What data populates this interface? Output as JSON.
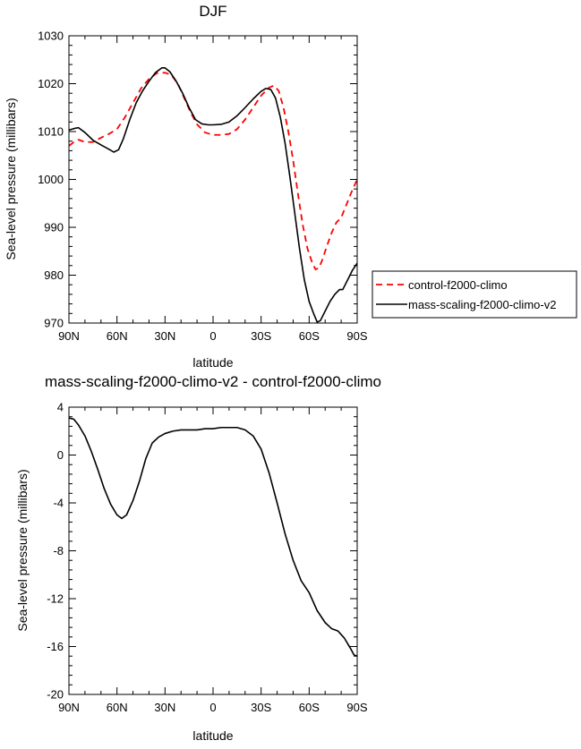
{
  "chart_data": [
    {
      "type": "line",
      "title": "DJF",
      "xlabel": "latitude",
      "ylabel": "Sea-level pressure (millibars)",
      "xlim": [
        90,
        -90
      ],
      "ylim": [
        970,
        1030
      ],
      "x_ticks": [
        90,
        60,
        30,
        0,
        -30,
        -60,
        -90
      ],
      "x_tick_labels": [
        "90N",
        "60N",
        "30N",
        "0",
        "30S",
        "60S",
        "90S"
      ],
      "y_ticks": [
        970,
        980,
        990,
        1000,
        1010,
        1020,
        1030
      ],
      "y_tick_labels": [
        "970",
        "980",
        "990",
        "1000",
        "1010",
        "1020",
        "1030"
      ],
      "legend_position": "right",
      "series": [
        {
          "name": "control-f2000-climo",
          "color": "#ff0000",
          "dash": "dashed",
          "points": [
            [
              90,
              1007.0
            ],
            [
              87,
              1007.8
            ],
            [
              84,
              1008.3
            ],
            [
              80,
              1007.8
            ],
            [
              75,
              1007.8
            ],
            [
              70,
              1008.7
            ],
            [
              65,
              1009.5
            ],
            [
              60,
              1010.5
            ],
            [
              55,
              1013.0
            ],
            [
              50,
              1016.0
            ],
            [
              45,
              1019.0
            ],
            [
              40,
              1021.0
            ],
            [
              35,
              1022.2
            ],
            [
              30,
              1022.3
            ],
            [
              26,
              1021.8
            ],
            [
              22,
              1020.0
            ],
            [
              18,
              1017.0
            ],
            [
              14,
              1014.0
            ],
            [
              10,
              1011.5
            ],
            [
              5,
              1009.8
            ],
            [
              0,
              1009.3
            ],
            [
              -5,
              1009.3
            ],
            [
              -10,
              1009.5
            ],
            [
              -15,
              1010.5
            ],
            [
              -20,
              1012.5
            ],
            [
              -25,
              1015.0
            ],
            [
              -30,
              1017.5
            ],
            [
              -35,
              1019.2
            ],
            [
              -38,
              1019.6
            ],
            [
              -41,
              1018.5
            ],
            [
              -44,
              1015.0
            ],
            [
              -47,
              1010.0
            ],
            [
              -50,
              1004.0
            ],
            [
              -53,
              997.0
            ],
            [
              -56,
              990.5
            ],
            [
              -59,
              985.5
            ],
            [
              -62,
              982.5
            ],
            [
              -64,
              981.2
            ],
            [
              -66,
              981.5
            ],
            [
              -68,
              983.0
            ],
            [
              -71,
              986.0
            ],
            [
              -74,
              988.8
            ],
            [
              -77,
              991.0
            ],
            [
              -80,
              992.0
            ],
            [
              -83,
              994.5
            ],
            [
              -86,
              997.0
            ],
            [
              -90,
              1000.0
            ]
          ]
        },
        {
          "name": "mass-scaling-f2000-climo-v2",
          "color": "#000000",
          "dash": "solid",
          "points": [
            [
              90,
              1010.3
            ],
            [
              86,
              1010.7
            ],
            [
              84,
              1010.8
            ],
            [
              80,
              1009.8
            ],
            [
              75,
              1008.2
            ],
            [
              70,
              1007.2
            ],
            [
              65,
              1006.3
            ],
            [
              62,
              1005.7
            ],
            [
              59,
              1006.2
            ],
            [
              56,
              1008.5
            ],
            [
              52,
              1012.5
            ],
            [
              48,
              1016.0
            ],
            [
              44,
              1018.5
            ],
            [
              40,
              1020.5
            ],
            [
              36,
              1022.3
            ],
            [
              32,
              1023.3
            ],
            [
              30,
              1023.3
            ],
            [
              27,
              1022.5
            ],
            [
              23,
              1020.5
            ],
            [
              19,
              1018.0
            ],
            [
              15,
              1015.0
            ],
            [
              11,
              1012.5
            ],
            [
              7,
              1011.6
            ],
            [
              3,
              1011.4
            ],
            [
              0,
              1011.4
            ],
            [
              -5,
              1011.5
            ],
            [
              -10,
              1012.0
            ],
            [
              -15,
              1013.3
            ],
            [
              -20,
              1015.0
            ],
            [
              -25,
              1016.8
            ],
            [
              -30,
              1018.4
            ],
            [
              -33,
              1019.0
            ],
            [
              -36,
              1018.8
            ],
            [
              -39,
              1017.0
            ],
            [
              -42,
              1013.0
            ],
            [
              -45,
              1007.5
            ],
            [
              -48,
              1000.5
            ],
            [
              -51,
              993.0
            ],
            [
              -54,
              985.5
            ],
            [
              -57,
              979.0
            ],
            [
              -60,
              974.5
            ],
            [
              -63,
              971.8
            ],
            [
              -65,
              970.2
            ],
            [
              -67,
              970.5
            ],
            [
              -70,
              972.5
            ],
            [
              -73,
              974.5
            ],
            [
              -76,
              976.0
            ],
            [
              -79,
              977.0
            ],
            [
              -81,
              977.0
            ],
            [
              -84,
              979.0
            ],
            [
              -87,
              981.0
            ],
            [
              -90,
              982.5
            ]
          ]
        }
      ]
    },
    {
      "type": "line",
      "title": "mass-scaling-f2000-climo-v2 - control-f2000-climo",
      "xlabel": "latitude",
      "ylabel": "Sea-level pressure (millibars)",
      "xlim": [
        90,
        -90
      ],
      "ylim": [
        -20,
        4
      ],
      "x_ticks": [
        90,
        60,
        30,
        0,
        -30,
        -60,
        -90
      ],
      "x_tick_labels": [
        "90N",
        "60N",
        "30N",
        "0",
        "30S",
        "60S",
        "90S"
      ],
      "y_ticks": [
        -20,
        -16,
        -12,
        -8,
        -4,
        0,
        4
      ],
      "y_tick_labels": [
        "-20",
        "-16",
        "-12",
        "-8",
        "-4",
        "0",
        "4"
      ],
      "series": [
        {
          "color": "#000000",
          "dash": "solid",
          "points": [
            [
              90,
              3.1
            ],
            [
              87,
              3.0
            ],
            [
              84,
              2.5
            ],
            [
              80,
              1.6
            ],
            [
              76,
              0.3
            ],
            [
              72,
              -1.2
            ],
            [
              68,
              -2.8
            ],
            [
              64,
              -4.1
            ],
            [
              60,
              -5.0
            ],
            [
              57,
              -5.3
            ],
            [
              54,
              -5.0
            ],
            [
              50,
              -3.8
            ],
            [
              46,
              -2.2
            ],
            [
              42,
              -0.3
            ],
            [
              38,
              1.0
            ],
            [
              34,
              1.5
            ],
            [
              30,
              1.8
            ],
            [
              25,
              2.0
            ],
            [
              20,
              2.1
            ],
            [
              15,
              2.1
            ],
            [
              10,
              2.1
            ],
            [
              5,
              2.2
            ],
            [
              0,
              2.2
            ],
            [
              -5,
              2.3
            ],
            [
              -10,
              2.3
            ],
            [
              -15,
              2.3
            ],
            [
              -20,
              2.1
            ],
            [
              -25,
              1.6
            ],
            [
              -30,
              0.5
            ],
            [
              -35,
              -1.5
            ],
            [
              -40,
              -4.0
            ],
            [
              -45,
              -6.6
            ],
            [
              -50,
              -8.8
            ],
            [
              -55,
              -10.5
            ],
            [
              -60,
              -11.5
            ],
            [
              -65,
              -13.0
            ],
            [
              -70,
              -14.0
            ],
            [
              -74,
              -14.5
            ],
            [
              -78,
              -14.7
            ],
            [
              -82,
              -15.3
            ],
            [
              -86,
              -16.2
            ],
            [
              -88,
              -16.7
            ],
            [
              -90,
              -16.8
            ]
          ]
        }
      ]
    }
  ]
}
